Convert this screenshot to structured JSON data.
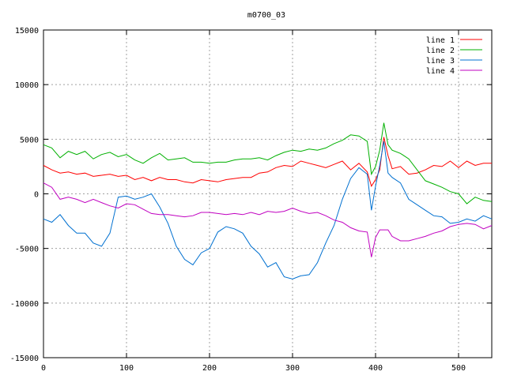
{
  "chart_data": {
    "type": "line",
    "title": "m0700_03",
    "xlabel": "",
    "ylabel": "",
    "xlim": [
      0,
      540
    ],
    "ylim": [
      -15000,
      15000
    ],
    "xticks": [
      0,
      100,
      200,
      300,
      400,
      500
    ],
    "yticks": [
      -15000,
      -10000,
      -5000,
      0,
      5000,
      10000,
      15000
    ],
    "grid": true,
    "legend_position": "top-right",
    "x": [
      0,
      10,
      20,
      30,
      40,
      50,
      60,
      70,
      80,
      90,
      100,
      110,
      120,
      130,
      140,
      150,
      160,
      170,
      180,
      190,
      200,
      210,
      220,
      230,
      240,
      250,
      260,
      270,
      280,
      290,
      300,
      310,
      320,
      330,
      340,
      350,
      360,
      370,
      380,
      390,
      395,
      400,
      405,
      410,
      415,
      420,
      430,
      440,
      450,
      460,
      470,
      480,
      490,
      500,
      510,
      520,
      530,
      540
    ],
    "series": [
      {
        "name": "line 1",
        "color": "#ff0000",
        "values": [
          2600,
          2200,
          1900,
          2000,
          1800,
          1900,
          1600,
          1700,
          1800,
          1600,
          1700,
          1300,
          1500,
          1200,
          1500,
          1300,
          1300,
          1100,
          1000,
          1300,
          1200,
          1100,
          1300,
          1400,
          1500,
          1500,
          1900,
          2000,
          2400,
          2600,
          2500,
          3000,
          2800,
          2600,
          2400,
          2700,
          3000,
          2200,
          2800,
          2000,
          700,
          1300,
          2200,
          5200,
          3500,
          2300,
          2500,
          1800,
          1900,
          2200,
          2600,
          2500,
          3000,
          2400,
          3000,
          2600,
          2800,
          2800
        ]
      },
      {
        "name": "line 2",
        "color": "#00b000",
        "values": [
          4500,
          4200,
          3300,
          3900,
          3600,
          3900,
          3200,
          3600,
          3800,
          3400,
          3600,
          3100,
          2800,
          3300,
          3700,
          3100,
          3200,
          3300,
          2900,
          2900,
          2800,
          2900,
          2900,
          3100,
          3200,
          3200,
          3300,
          3100,
          3500,
          3800,
          4000,
          3900,
          4100,
          4000,
          4200,
          4600,
          4900,
          5400,
          5300,
          4800,
          1800,
          2500,
          4000,
          6500,
          4500,
          4000,
          3700,
          3200,
          2200,
          1200,
          900,
          600,
          200,
          0,
          -900,
          -300,
          -600,
          -700
        ]
      },
      {
        "name": "line 3",
        "color": "#0070d0",
        "values": [
          -2300,
          -2600,
          -1900,
          -2900,
          -3600,
          -3600,
          -4500,
          -4800,
          -3600,
          -300,
          -200,
          -500,
          -300,
          0,
          -1200,
          -2700,
          -4800,
          -6000,
          -6500,
          -5400,
          -5000,
          -3500,
          -3000,
          -3200,
          -3600,
          -4800,
          -5500,
          -6700,
          -6300,
          -7600,
          -7800,
          -7500,
          -7400,
          -6300,
          -4500,
          -2900,
          -500,
          1400,
          2400,
          1800,
          -1500,
          700,
          2600,
          4800,
          1900,
          1500,
          1000,
          -500,
          -1000,
          -1500,
          -2000,
          -2100,
          -2700,
          -2600,
          -2300,
          -2500,
          -2000,
          -2300
        ]
      },
      {
        "name": "line 4",
        "color": "#c000c0",
        "values": [
          1000,
          600,
          -500,
          -300,
          -500,
          -800,
          -500,
          -800,
          -1100,
          -1300,
          -900,
          -1000,
          -1400,
          -1800,
          -1900,
          -1900,
          -2000,
          -2100,
          -2000,
          -1700,
          -1700,
          -1800,
          -1900,
          -1800,
          -1900,
          -1700,
          -1900,
          -1600,
          -1700,
          -1600,
          -1300,
          -1600,
          -1800,
          -1700,
          -2000,
          -2400,
          -2600,
          -3100,
          -3400,
          -3500,
          -5800,
          -4000,
          -3300,
          -3300,
          -3300,
          -3900,
          -4300,
          -4300,
          -4100,
          -3900,
          -3600,
          -3400,
          -3000,
          -2800,
          -2700,
          -2800,
          -3200,
          -2900
        ]
      }
    ]
  }
}
